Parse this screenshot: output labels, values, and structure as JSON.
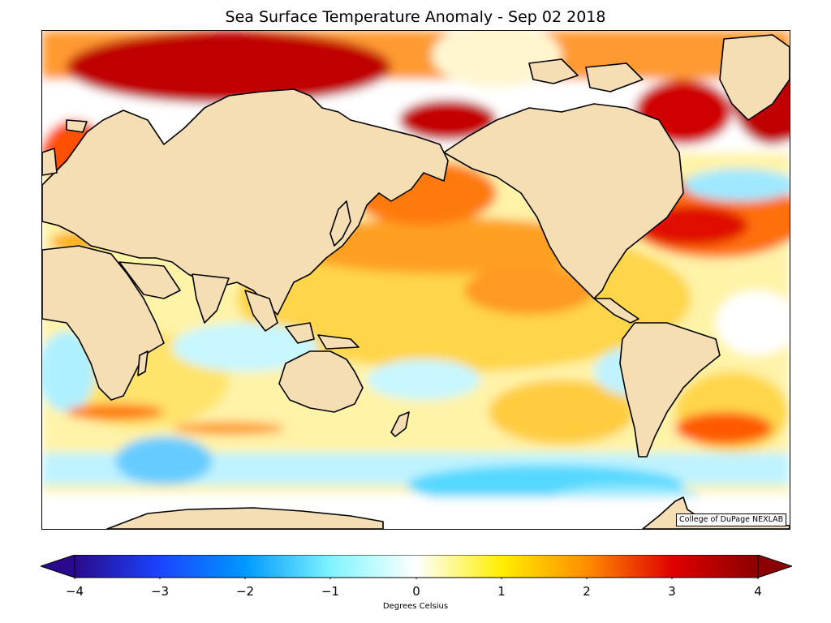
{
  "title": "Sea Surface Temperature Anomaly - Sep 02 2018",
  "credit": "College of DuPage NEXLAB",
  "colorbar": {
    "label": "Degrees Celsius",
    "min": -4,
    "max": 4,
    "ticks": [
      "−4",
      "−3",
      "−2",
      "−1",
      "0",
      "1",
      "2",
      "3",
      "4"
    ],
    "colors": {
      "cold_extreme": "#2a0a8c",
      "cold": "#0055ff",
      "cool": "#7ff4ff",
      "neutral": "#ffffff",
      "warm": "#ffee00",
      "hot": "#ff3300",
      "hot_extreme": "#8b0000"
    }
  },
  "map": {
    "land_color": "#f5deb3",
    "coastline_color": "#000000"
  }
}
